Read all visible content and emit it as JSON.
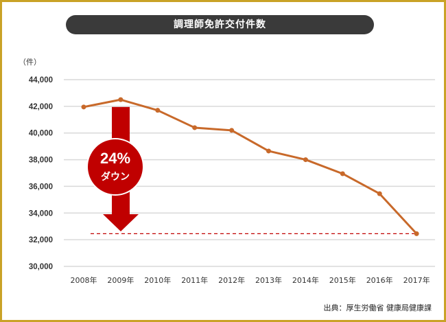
{
  "chart_data": {
    "type": "line",
    "title": "調理師免許交付件数",
    "ylabel": "（件）",
    "xlabel": "",
    "categories": [
      "2008年",
      "2009年",
      "2010年",
      "2011年",
      "2012年",
      "2013年",
      "2014年",
      "2015年",
      "2016年",
      "2017年"
    ],
    "values": [
      41950,
      42500,
      41700,
      40400,
      40200,
      38650,
      38000,
      36950,
      35450,
      32450
    ],
    "ylim": [
      30000,
      44000
    ],
    "yticks": [
      30000,
      32000,
      34000,
      36000,
      38000,
      40000,
      42000,
      44000
    ],
    "ytick_labels": [
      "30,000",
      "32,000",
      "34,000",
      "36,000",
      "38,000",
      "40,000",
      "42,000",
      "44,000"
    ],
    "grid": true,
    "annotation": {
      "percent": "24%",
      "text": "ダウン"
    },
    "source": "出典：厚生労働省 健康局健康課",
    "colors": {
      "line": "#c8692a",
      "arrow": "#c00000",
      "frame": "#c9a227",
      "title_bg": "#3a3a3a"
    }
  }
}
